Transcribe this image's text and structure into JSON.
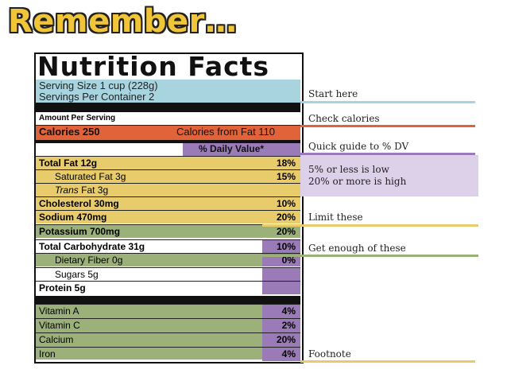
{
  "title": "Remember…",
  "label": {
    "heading": "Nutrition Facts",
    "serving_size": "Serving Size 1 cup (228g)",
    "servings_per_container": "Servings Per Container  2",
    "amount_per_serving": "Amount Per Serving",
    "calories": "Calories 250",
    "calories_from_fat": "Calories from Fat 110",
    "daily_value_header": "% Daily Value*",
    "nutrients": [
      {
        "name": "Total Fat 12g",
        "pct": "18%"
      },
      {
        "name": "Saturated Fat 3g",
        "pct": "15%"
      },
      {
        "name": "Trans Fat 3g",
        "pct": ""
      },
      {
        "name": "Cholesterol 30mg",
        "pct": "10%"
      },
      {
        "name": "Sodium 470mg",
        "pct": "20%"
      },
      {
        "name": "Potassium 700mg",
        "pct": "20%"
      },
      {
        "name": "Total Carbohydrate 31g",
        "pct": "10%"
      },
      {
        "name": "Dietary Fiber 0g",
        "pct": "0%"
      },
      {
        "name": "Sugars 5g",
        "pct": ""
      },
      {
        "name": "Protein 5g",
        "pct": ""
      }
    ],
    "vitamins": [
      {
        "name": "Vitamin A",
        "pct": "4%"
      },
      {
        "name": "Vitamin C",
        "pct": "2%"
      },
      {
        "name": "Calcium",
        "pct": "20%"
      },
      {
        "name": "Iron",
        "pct": "4%"
      }
    ]
  },
  "guide": {
    "start_here": "Start here",
    "check_calories": "Check calories",
    "quick_guide": "Quick guide to % DV",
    "low": "5% or less is low",
    "high": "20% or more is high",
    "limit_these": "Limit these",
    "get_enough": "Get enough of these",
    "footnote": "Footnote"
  },
  "colors": {
    "blue": "#a8d4e0",
    "red": "#e0633a",
    "purple": "#9b7ab8",
    "lavender": "#ddd1ea",
    "yellow": "#e8cb6a",
    "green": "#9cb17a"
  }
}
